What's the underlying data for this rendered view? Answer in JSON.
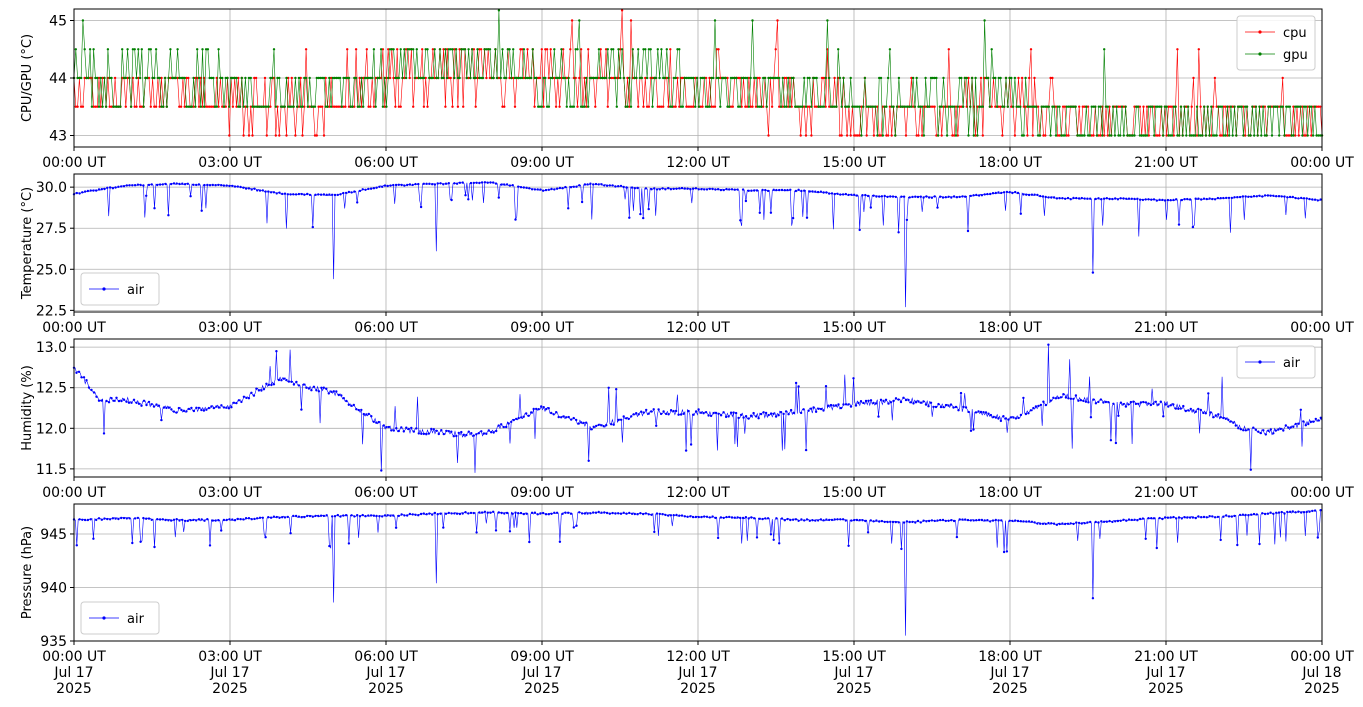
{
  "chart_data": [
    {
      "type": "line",
      "ylabel": "CPU/GPU (°C)",
      "x_range": [
        "2025-07-17 00:00",
        "2025-07-18 00:00"
      ],
      "ylim": [
        42.8,
        45.2
      ],
      "yticks": [
        43,
        44,
        45
      ],
      "xtick_labels": [
        "00:00 UT",
        "03:00 UT",
        "06:00 UT",
        "09:00 UT",
        "12:00 UT",
        "15:00 UT",
        "18:00 UT",
        "21:00 UT",
        "00:00 UT"
      ],
      "grid": true,
      "legend_position": "top-right",
      "legend": [
        "cpu",
        "gpu"
      ],
      "series": [
        {
          "name": "cpu",
          "color": "#ff0000",
          "x_hours": [
            0,
            1,
            2,
            3,
            4,
            5,
            6,
            7,
            8,
            9,
            10,
            11,
            12,
            13,
            14,
            15,
            16,
            17,
            18,
            19,
            20,
            21,
            22,
            23,
            24
          ],
          "values": [
            43.8,
            43.7,
            43.9,
            43.6,
            43.4,
            43.5,
            44.0,
            44.0,
            44.1,
            44.0,
            44.0,
            43.9,
            43.9,
            43.7,
            43.6,
            43.4,
            43.4,
            43.4,
            43.5,
            43.3,
            43.3,
            43.3,
            43.4,
            43.3,
            43.4
          ]
        },
        {
          "name": "gpu",
          "color": "#008000",
          "x_hours": [
            0,
            1,
            2,
            3,
            4,
            5,
            6,
            7,
            8,
            9,
            10,
            11,
            12,
            13,
            14,
            15,
            16,
            17,
            18,
            19,
            20,
            21,
            22,
            23,
            24
          ],
          "values": [
            44.0,
            44.0,
            44.1,
            43.9,
            43.7,
            43.8,
            44.1,
            44.2,
            44.2,
            44.0,
            44.0,
            44.0,
            43.9,
            43.8,
            43.8,
            43.6,
            43.5,
            43.5,
            43.6,
            43.3,
            43.3,
            43.3,
            43.3,
            43.3,
            43.3
          ]
        }
      ]
    },
    {
      "type": "line",
      "ylabel": "Temperature (°C)",
      "x_range": [
        "2025-07-17 00:00",
        "2025-07-18 00:00"
      ],
      "ylim": [
        22.4,
        30.8
      ],
      "yticks": [
        22.5,
        25.0,
        27.5,
        30.0
      ],
      "ytick_labels": [
        "22.5",
        "25.0",
        "27.5",
        "30.0"
      ],
      "xtick_labels": [
        "00:00 UT",
        "03:00 UT",
        "06:00 UT",
        "09:00 UT",
        "12:00 UT",
        "15:00 UT",
        "18:00 UT",
        "21:00 UT",
        "00:00 UT"
      ],
      "grid": true,
      "legend_position": "bottom-left",
      "legend": [
        "air"
      ],
      "series": [
        {
          "name": "air",
          "color": "#0000ff",
          "x_hours": [
            0,
            1,
            2,
            3,
            4,
            5,
            6,
            7,
            8,
            9,
            10,
            11,
            12,
            13,
            14,
            15,
            16,
            17,
            18,
            19,
            20,
            21,
            22,
            23,
            24
          ],
          "values": [
            29.6,
            30.1,
            30.2,
            30.1,
            29.6,
            29.5,
            30.1,
            30.2,
            30.3,
            29.8,
            30.2,
            29.9,
            29.9,
            29.8,
            29.8,
            29.5,
            29.4,
            29.4,
            29.7,
            29.3,
            29.3,
            29.2,
            29.3,
            29.5,
            29.2
          ]
        }
      ]
    },
    {
      "type": "line",
      "ylabel": "Humidity (%)",
      "x_range": [
        "2025-07-17 00:00",
        "2025-07-18 00:00"
      ],
      "ylim": [
        11.4,
        13.1
      ],
      "yticks": [
        11.5,
        12.0,
        12.5,
        13.0
      ],
      "ytick_labels": [
        "11.5",
        "12.0",
        "12.5",
        "13.0"
      ],
      "xtick_labels": [
        "00:00 UT",
        "03:00 UT",
        "06:00 UT",
        "09:00 UT",
        "12:00 UT",
        "15:00 UT",
        "18:00 UT",
        "21:00 UT",
        "00:00 UT"
      ],
      "grid": true,
      "legend_position": "top-right",
      "legend": [
        "air"
      ],
      "series": [
        {
          "name": "air",
          "color": "#0000ff",
          "x_hours": [
            0,
            0.5,
            1,
            2,
            3,
            3.5,
            4,
            4.5,
            5,
            6,
            7,
            7.5,
            8,
            9,
            10,
            11,
            12,
            13,
            14,
            15,
            16,
            17,
            18,
            18.8,
            19,
            20,
            21,
            22,
            22.5,
            23,
            24
          ],
          "values": [
            12.75,
            12.35,
            12.35,
            12.22,
            12.28,
            12.45,
            12.62,
            12.5,
            12.45,
            12.0,
            11.95,
            11.92,
            11.95,
            12.25,
            12.0,
            12.2,
            12.2,
            12.15,
            12.2,
            12.3,
            12.35,
            12.25,
            12.1,
            12.35,
            12.4,
            12.3,
            12.3,
            12.15,
            12.0,
            11.95,
            12.12
          ]
        }
      ]
    },
    {
      "type": "line",
      "ylabel": "Pressure (hPa)",
      "x_range": [
        "2025-07-17 00:00",
        "2025-07-18 00:00"
      ],
      "ylim": [
        935.0,
        947.8
      ],
      "yticks": [
        935,
        940,
        945
      ],
      "xtick_labels": [
        "00:00 UT\nJul 17\n2025",
        "03:00 UT\nJul 17\n2025",
        "06:00 UT\nJul 17\n2025",
        "09:00 UT\nJul 17\n2025",
        "12:00 UT\nJul 17\n2025",
        "15:00 UT\nJul 17\n2025",
        "18:00 UT\nJul 17\n2025",
        "21:00 UT\nJul 17\n2025",
        "00:00 UT\nJul 18\n2025"
      ],
      "grid": true,
      "legend_position": "bottom-left",
      "legend": [
        "air"
      ],
      "series": [
        {
          "name": "air",
          "color": "#0000ff",
          "x_hours": [
            0,
            1,
            2,
            3,
            4,
            5,
            6,
            7,
            8,
            9,
            10,
            11,
            12,
            13,
            14,
            15,
            16,
            17,
            18,
            19,
            20,
            21,
            22,
            23,
            24
          ],
          "values": [
            946.3,
            946.5,
            946.3,
            946.3,
            946.6,
            946.7,
            946.7,
            946.9,
            947.0,
            946.9,
            947.0,
            946.9,
            946.6,
            946.5,
            946.3,
            946.3,
            946.1,
            946.3,
            946.2,
            945.9,
            946.2,
            946.5,
            946.6,
            946.9,
            947.2
          ]
        }
      ]
    }
  ]
}
